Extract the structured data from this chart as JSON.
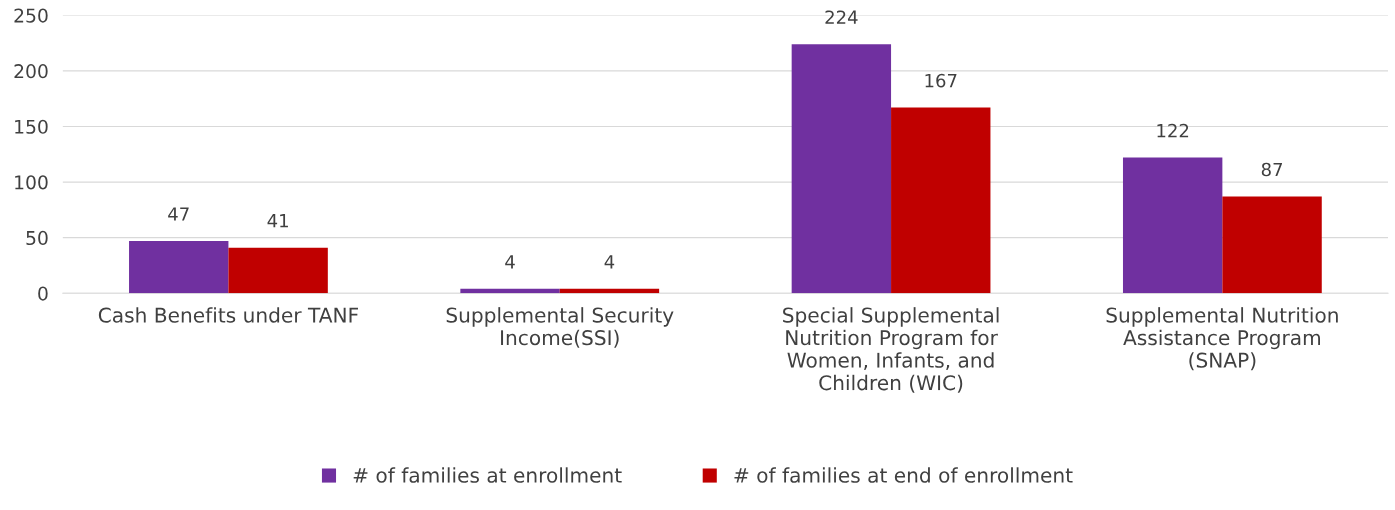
{
  "chart_data": {
    "type": "bar",
    "categories": [
      "Cash Benefits under TANF",
      "Supplemental Security Income(SSI)",
      "Special Supplemental Nutrition Program for Women, Infants, and Children (WIC)",
      "Supplemental Nutrition Assistance Program (SNAP)"
    ],
    "series": [
      {
        "name": "# of families at enrollment",
        "color": "#7030a0",
        "values": [
          47,
          4,
          224,
          122
        ]
      },
      {
        "name": "# of families at end of enrollment",
        "color": "#c00000",
        "values": [
          41,
          4,
          167,
          87
        ]
      }
    ],
    "ylim": [
      0,
      250
    ],
    "yticks": [
      0,
      50,
      100,
      150,
      200,
      250
    ],
    "grid": "y",
    "legend": "bottom",
    "data_labels": true
  }
}
